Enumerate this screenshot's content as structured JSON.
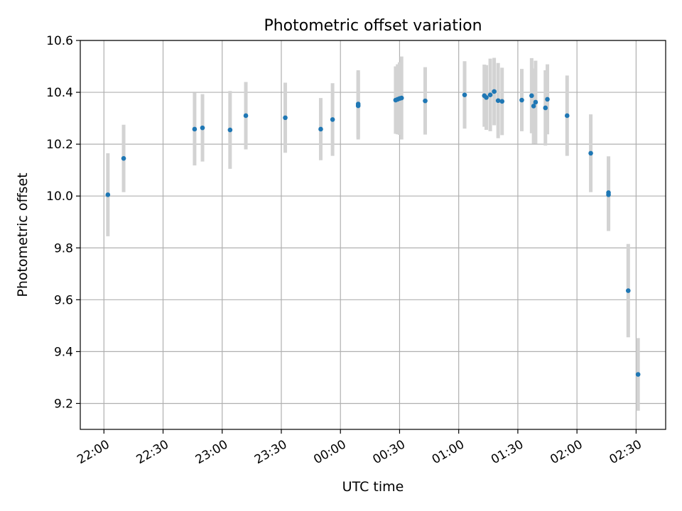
{
  "chart_data": {
    "type": "scatter",
    "title": "Photometric offset variation",
    "xlabel": "UTC time",
    "ylabel": "Photometric offset",
    "x_axis": "time",
    "xlim": [
      "21:48",
      "02:45"
    ],
    "ylim": [
      9.1,
      10.6
    ],
    "grid": true,
    "x_ticks": [
      {
        "t": "22:00",
        "label": "22:00"
      },
      {
        "t": "22:30",
        "label": "22:30"
      },
      {
        "t": "23:00",
        "label": "23:00"
      },
      {
        "t": "23:30",
        "label": "23:30"
      },
      {
        "t": "00:00",
        "label": "00:00"
      },
      {
        "t": "00:30",
        "label": "00:30"
      },
      {
        "t": "01:00",
        "label": "01:00"
      },
      {
        "t": "01:30",
        "label": "01:30"
      },
      {
        "t": "02:00",
        "label": "02:00"
      },
      {
        "t": "02:30",
        "label": "02:30"
      }
    ],
    "y_ticks": [
      {
        "v": 9.2,
        "label": "9.2"
      },
      {
        "v": 9.4,
        "label": "9.4"
      },
      {
        "v": 9.6,
        "label": "9.6"
      },
      {
        "v": 9.8,
        "label": "9.8"
      },
      {
        "v": 10.0,
        "label": "10.0"
      },
      {
        "v": 10.2,
        "label": "10.2"
      },
      {
        "v": 10.4,
        "label": "10.4"
      },
      {
        "v": 10.6,
        "label": "10.6"
      }
    ],
    "marker_color": "#1f77b4",
    "errorbar_color": "#d3d3d3",
    "points": [
      {
        "x": "22:02",
        "y": 10.005,
        "err": 0.16
      },
      {
        "x": "22:10",
        "y": 10.145,
        "err": 0.13
      },
      {
        "x": "22:46",
        "y": 10.258,
        "err": 0.14
      },
      {
        "x": "22:50",
        "y": 10.263,
        "err": 0.13
      },
      {
        "x": "23:04",
        "y": 10.255,
        "err": 0.15
      },
      {
        "x": "23:12",
        "y": 10.31,
        "err": 0.13
      },
      {
        "x": "23:32",
        "y": 10.302,
        "err": 0.135
      },
      {
        "x": "23:50",
        "y": 10.258,
        "err": 0.12
      },
      {
        "x": "23:56",
        "y": 10.295,
        "err": 0.14
      },
      {
        "x": "00:09",
        "y": 10.355,
        "err": 0.13
      },
      {
        "x": "00:09",
        "y": 10.348,
        "err": 0.13
      },
      {
        "x": "00:28",
        "y": 10.37,
        "err": 0.13
      },
      {
        "x": "00:29",
        "y": 10.373,
        "err": 0.135
      },
      {
        "x": "00:30",
        "y": 10.376,
        "err": 0.14
      },
      {
        "x": "00:31",
        "y": 10.378,
        "err": 0.16
      },
      {
        "x": "00:43",
        "y": 10.367,
        "err": 0.13
      },
      {
        "x": "01:03",
        "y": 10.39,
        "err": 0.13
      },
      {
        "x": "01:13",
        "y": 10.387,
        "err": 0.12
      },
      {
        "x": "01:14",
        "y": 10.38,
        "err": 0.125
      },
      {
        "x": "01:16",
        "y": 10.39,
        "err": 0.14
      },
      {
        "x": "01:18",
        "y": 10.403,
        "err": 0.13
      },
      {
        "x": "01:20",
        "y": 10.368,
        "err": 0.145
      },
      {
        "x": "01:22",
        "y": 10.365,
        "err": 0.13
      },
      {
        "x": "01:32",
        "y": 10.37,
        "err": 0.12
      },
      {
        "x": "01:37",
        "y": 10.387,
        "err": 0.145
      },
      {
        "x": "01:38",
        "y": 10.347,
        "err": 0.145
      },
      {
        "x": "01:39",
        "y": 10.362,
        "err": 0.16
      },
      {
        "x": "01:44",
        "y": 10.34,
        "err": 0.145
      },
      {
        "x": "01:45",
        "y": 10.373,
        "err": 0.135
      },
      {
        "x": "01:55",
        "y": 10.31,
        "err": 0.155
      },
      {
        "x": "02:07",
        "y": 10.165,
        "err": 0.15
      },
      {
        "x": "02:16",
        "y": 10.013,
        "err": 0.14
      },
      {
        "x": "02:16",
        "y": 10.005,
        "err": 0.14
      },
      {
        "x": "02:26",
        "y": 9.635,
        "err": 0.18
      },
      {
        "x": "02:31",
        "y": 9.312,
        "err": 0.14
      }
    ]
  }
}
